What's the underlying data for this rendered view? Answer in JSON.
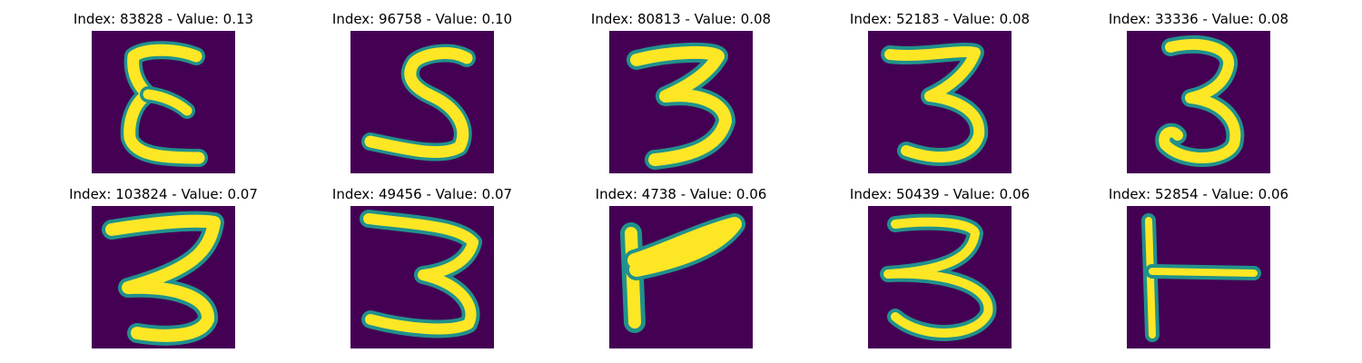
{
  "panels": [
    {
      "title": "Index: 83828 - Value: 0.13"
    },
    {
      "title": "Index: 96758 - Value: 0.10"
    },
    {
      "title": "Index: 80813 - Value: 0.08"
    },
    {
      "title": "Index: 52183 - Value: 0.08"
    },
    {
      "title": "Index: 33336 - Value: 0.08"
    },
    {
      "title": "Index: 103824 - Value: 0.07"
    },
    {
      "title": "Index: 49456 - Value: 0.07"
    },
    {
      "title": "Index: 4738 - Value: 0.06"
    },
    {
      "title": "Index: 50439 - Value: 0.06"
    },
    {
      "title": "Index: 52854 - Value: 0.06"
    }
  ],
  "colors": {
    "background": "#440154",
    "stroke_core": "#fde725",
    "stroke_edge": "#21918c"
  }
}
